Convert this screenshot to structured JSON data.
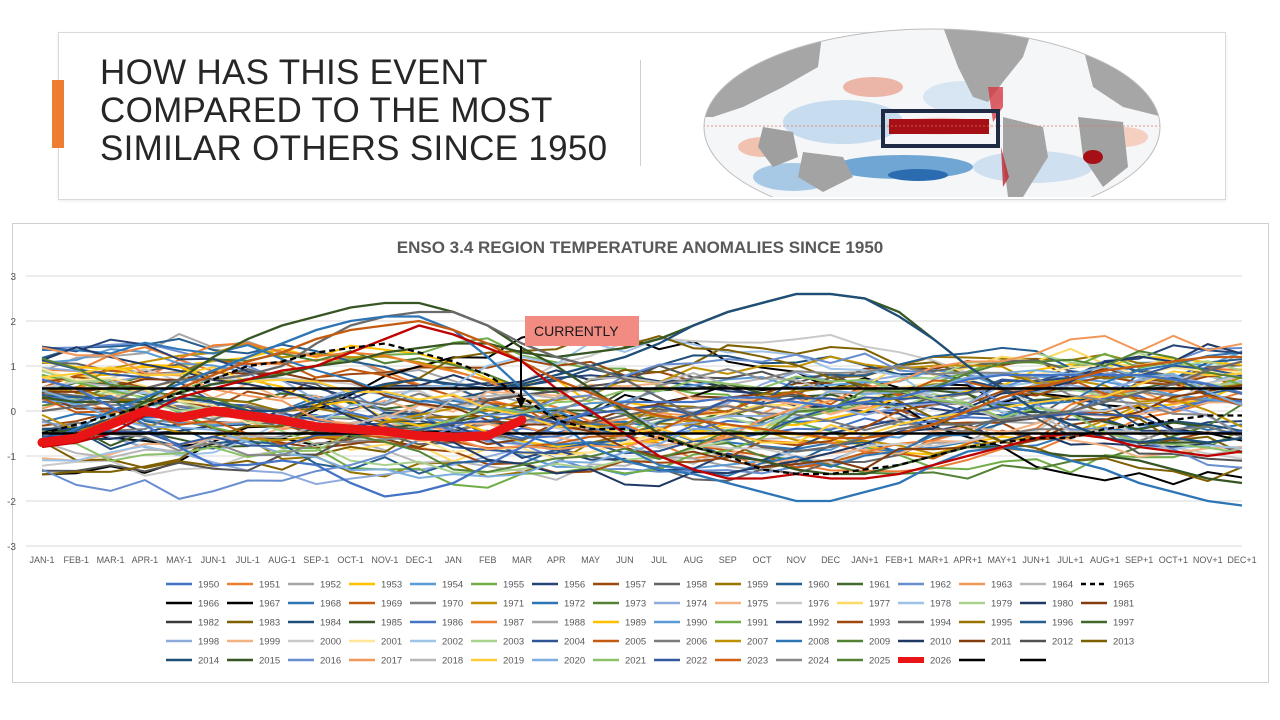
{
  "slide": {
    "headline_lines": [
      "HOW HAS THIS EVENT",
      "COMPARED TO THE MOST",
      "SIMILAR OTHERS SINCE 1950"
    ],
    "accent_color": "#ed7d31"
  },
  "map": {
    "icon": "world-sst-anomaly-map",
    "highlight_box_color": "#1f2a44",
    "warm_color": "#b2182b",
    "cool_color": "#2166ac"
  },
  "chart_data": {
    "type": "line",
    "title": "ENSO 3.4 REGION TEMPERATURE ANOMALIES SINCE 1950",
    "xlabel": "",
    "ylabel": "",
    "ylim": [
      -3,
      3
    ],
    "yticks": [
      "3",
      "2",
      "1",
      "0",
      "-1",
      "-2",
      "-3"
    ],
    "categories": [
      "JAN-1",
      "FEB-1",
      "MAR-1",
      "APR-1",
      "MAY-1",
      "JUN-1",
      "JUL-1",
      "AUG-1",
      "SEP-1",
      "OCT-1",
      "NOV-1",
      "DEC-1",
      "JAN",
      "FEB",
      "MAR",
      "APR",
      "MAY",
      "JUN",
      "JUL",
      "AUG",
      "SEP",
      "OCT",
      "NOV",
      "DEC",
      "JAN+1",
      "FEB+1",
      "MAR+1",
      "APR+1",
      "MAY+1",
      "JUN+1",
      "JUL+1",
      "AUG+1",
      "SEP+1",
      "OCT+1",
      "NOV+1",
      "DEC+1"
    ],
    "grid": true,
    "legend_position": "bottom",
    "annotation": {
      "text": "CURRENTLY",
      "category": "MAR",
      "color": "#f28b82"
    },
    "threshold_lines": [
      0.5,
      -0.5
    ],
    "highlight_series": {
      "name": "2026",
      "color": "#e81416",
      "values": [
        -0.7,
        -0.6,
        -0.3,
        0.0,
        -0.15,
        0.0,
        -0.1,
        -0.2,
        -0.35,
        -0.4,
        -0.45,
        -0.55,
        -0.58,
        -0.55,
        -0.2,
        null,
        null,
        null,
        null,
        null,
        null,
        null,
        null,
        null,
        null,
        null,
        null,
        null,
        null,
        null,
        null,
        null,
        null,
        null,
        null,
        null
      ]
    },
    "featured_series": [
      {
        "name": "1997",
        "color": "#375623",
        "values": [
          -0.5,
          -0.4,
          -0.2,
          0.2,
          0.7,
          1.2,
          1.6,
          1.9,
          2.1,
          2.3,
          2.4,
          2.4,
          2.2,
          1.9,
          1.4,
          1.0,
          0.5,
          0.0,
          -0.5,
          -0.8,
          -1.0,
          -1.1,
          -1.3,
          -1.4,
          -1.4,
          -1.2,
          -1.0,
          -0.8,
          -0.8,
          -0.9,
          -1.0,
          -1.0,
          -1.1,
          -1.3,
          -1.5,
          -1.6
        ]
      },
      {
        "name": "2015",
        "color": "#375623",
        "values": [
          0.3,
          0.2,
          0.2,
          0.2,
          0.4,
          0.6,
          0.7,
          0.8,
          1.0,
          1.1,
          1.3,
          1.4,
          1.5,
          1.5,
          1.3,
          1.2,
          1.3,
          1.4,
          1.6,
          1.9,
          2.2,
          2.4,
          2.6,
          2.6,
          2.5,
          2.2,
          1.6,
          1.0,
          0.5,
          0.0,
          -0.3,
          -0.6,
          -0.7,
          -0.7,
          -0.7,
          -0.6
        ]
      },
      {
        "name": "2014",
        "color": "#1f4e79",
        "values": [
          -0.4,
          -0.4,
          -0.2,
          0.1,
          0.3,
          0.2,
          0.0,
          0.0,
          0.2,
          0.4,
          0.6,
          0.7,
          0.6,
          0.5,
          0.6,
          0.8,
          1.0,
          1.2,
          1.5,
          1.9,
          2.2,
          2.4,
          2.6,
          2.6,
          2.5,
          2.1,
          1.6,
          1.0,
          0.5,
          0.0,
          -0.3,
          -0.6,
          -0.7,
          -0.6,
          -0.7,
          -0.6
        ]
      },
      {
        "name": "1982",
        "color": "#6a6a6a",
        "values": [
          0.0,
          0.1,
          0.2,
          0.5,
          0.7,
          0.7,
          0.8,
          1.0,
          1.5,
          1.9,
          2.1,
          2.2,
          2.2,
          1.9,
          1.5,
          1.2,
          1.0,
          0.7,
          0.3,
          -0.1,
          -0.5,
          -0.8,
          -0.9,
          -0.8,
          -0.6,
          -0.4,
          -0.3,
          -0.3,
          -0.2,
          -0.1,
          0.0,
          0.2,
          0.4,
          0.6,
          0.9,
          1.1
        ]
      },
      {
        "name": "1972",
        "color": "#2e75b6",
        "values": [
          -0.7,
          -0.4,
          0.0,
          0.3,
          0.6,
          0.9,
          1.2,
          1.5,
          1.8,
          2.0,
          2.1,
          2.1,
          1.8,
          1.2,
          0.5,
          -0.2,
          -0.8,
          -1.1,
          -1.3,
          -1.4,
          -1.6,
          -1.8,
          -2.0,
          -2.0,
          -1.8,
          -1.6,
          -1.2,
          -0.9,
          -0.8,
          -0.9,
          -1.1,
          -1.3,
          -1.6,
          -1.8,
          -2.0,
          -2.1
        ]
      },
      {
        "name": "1988",
        "color": "#4472c4",
        "values": [
          0.7,
          0.5,
          0.1,
          -0.3,
          -0.8,
          -1.2,
          -1.2,
          -1.1,
          -1.2,
          -1.6,
          -1.9,
          -1.8,
          -1.6,
          -1.2,
          -0.8,
          -0.3,
          0.0,
          0.2,
          0.2,
          0.2,
          0.3,
          0.3,
          0.2,
          0.1,
          0.2,
          0.3,
          0.5,
          0.7,
          0.8,
          0.8,
          0.8,
          0.8,
          0.8,
          0.7,
          0.6,
          0.4
        ]
      },
      {
        "name": "2023",
        "color": "#c55a11",
        "values": [
          -0.7,
          -0.5,
          -0.2,
          0.1,
          0.5,
          0.8,
          1.1,
          1.3,
          1.6,
          1.8,
          1.9,
          2.0,
          1.8,
          1.5,
          1.1,
          0.7,
          0.4,
          0.1,
          -0.1,
          -0.2,
          -0.3,
          -0.4,
          -0.5,
          -0.6,
          -0.6,
          -0.5,
          -0.3,
          0.0,
          0.3,
          0.5,
          0.7,
          0.9,
          1.0,
          1.1,
          1.2,
          1.2
        ]
      },
      {
        "name": "2009",
        "color": "#c00000",
        "values": [
          -0.8,
          -0.7,
          -0.5,
          -0.1,
          0.3,
          0.5,
          0.7,
          0.9,
          1.0,
          1.3,
          1.6,
          1.9,
          1.7,
          1.4,
          1.1,
          0.5,
          0.0,
          -0.5,
          -1.0,
          -1.3,
          -1.5,
          -1.5,
          -1.4,
          -1.5,
          -1.5,
          -1.4,
          -1.2,
          -1.0,
          -0.8,
          -0.6,
          -0.5,
          -0.6,
          -0.8,
          -0.9,
          -1.0,
          -0.9
        ]
      },
      {
        "name": "1965",
        "color": "#000000",
        "values": [
          -0.5,
          -0.3,
          -0.1,
          0.1,
          0.4,
          0.7,
          1.0,
          1.1,
          1.3,
          1.4,
          1.5,
          1.3,
          1.1,
          0.8,
          0.3,
          -0.2,
          -0.4,
          -0.4,
          -0.6,
          -0.8,
          -1.0,
          -1.3,
          -1.4,
          -1.4,
          -1.3,
          -1.2,
          -1.0,
          -0.8,
          -0.7,
          -0.6,
          -0.6,
          -0.4,
          -0.3,
          -0.2,
          -0.1,
          -0.1
        ]
      }
    ],
    "legend": [
      {
        "name": "1950",
        "color": "#4472c4"
      },
      {
        "name": "1951",
        "color": "#ed7d31"
      },
      {
        "name": "1952",
        "color": "#a5a5a5"
      },
      {
        "name": "1953",
        "color": "#ffc000"
      },
      {
        "name": "1954",
        "color": "#5b9bd5"
      },
      {
        "name": "1955",
        "color": "#70ad47"
      },
      {
        "name": "1956",
        "color": "#264478"
      },
      {
        "name": "1957",
        "color": "#9e480e"
      },
      {
        "name": "1958",
        "color": "#636363"
      },
      {
        "name": "1959",
        "color": "#997300"
      },
      {
        "name": "1960",
        "color": "#255e91"
      },
      {
        "name": "1961",
        "color": "#43682b"
      },
      {
        "name": "1962",
        "color": "#698ed0"
      },
      {
        "name": "1963",
        "color": "#f1975a"
      },
      {
        "name": "1964",
        "color": "#b7b7b7"
      },
      {
        "name": "1965",
        "color": "#000000",
        "dashed": true
      },
      {
        "name": "1966",
        "color": "#000000"
      },
      {
        "name": "1967",
        "color": "#000000"
      },
      {
        "name": "1968",
        "color": "#2e75b6"
      },
      {
        "name": "1969",
        "color": "#c55a11"
      },
      {
        "name": "1970",
        "color": "#7f7f7f"
      },
      {
        "name": "1971",
        "color": "#bf9000"
      },
      {
        "name": "1972",
        "color": "#2e75b6"
      },
      {
        "name": "1973",
        "color": "#548235"
      },
      {
        "name": "1974",
        "color": "#8faadc"
      },
      {
        "name": "1975",
        "color": "#f4b183"
      },
      {
        "name": "1976",
        "color": "#c9c9c9"
      },
      {
        "name": "1977",
        "color": "#ffd966"
      },
      {
        "name": "1978",
        "color": "#9dc3e6"
      },
      {
        "name": "1979",
        "color": "#a9d18e"
      },
      {
        "name": "1980",
        "color": "#1f3864"
      },
      {
        "name": "1981",
        "color": "#843c0c"
      },
      {
        "name": "1982",
        "color": "#3a3a3a"
      },
      {
        "name": "1983",
        "color": "#7f6000"
      },
      {
        "name": "1984",
        "color": "#1f4e79"
      },
      {
        "name": "1985",
        "color": "#375623"
      },
      {
        "name": "1986",
        "color": "#4472c4"
      },
      {
        "name": "1987",
        "color": "#ed7d31"
      },
      {
        "name": "1988",
        "color": "#a5a5a5"
      },
      {
        "name": "1989",
        "color": "#ffc000"
      },
      {
        "name": "1990",
        "color": "#5b9bd5"
      },
      {
        "name": "1991",
        "color": "#70ad47"
      },
      {
        "name": "1992",
        "color": "#264478"
      },
      {
        "name": "1993",
        "color": "#9e480e"
      },
      {
        "name": "1994",
        "color": "#636363"
      },
      {
        "name": "1995",
        "color": "#997300"
      },
      {
        "name": "1996",
        "color": "#255e91"
      },
      {
        "name": "1997",
        "color": "#43682b"
      },
      {
        "name": "1998",
        "color": "#8eaadb"
      },
      {
        "name": "1999",
        "color": "#f4b183"
      },
      {
        "name": "2000",
        "color": "#c9c9c9"
      },
      {
        "name": "2001",
        "color": "#ffe699"
      },
      {
        "name": "2002",
        "color": "#9dc3e6"
      },
      {
        "name": "2003",
        "color": "#a9d18e"
      },
      {
        "name": "2004",
        "color": "#2f5597"
      },
      {
        "name": "2005",
        "color": "#c55a11"
      },
      {
        "name": "2006",
        "color": "#7b7b7b"
      },
      {
        "name": "2007",
        "color": "#bf9000"
      },
      {
        "name": "2008",
        "color": "#2e75b6"
      },
      {
        "name": "2009",
        "color": "#548235"
      },
      {
        "name": "2010",
        "color": "#203864"
      },
      {
        "name": "2011",
        "color": "#843c0c"
      },
      {
        "name": "2012",
        "color": "#525252"
      },
      {
        "name": "2013",
        "color": "#7f6000"
      },
      {
        "name": "2014",
        "color": "#1f4e79"
      },
      {
        "name": "2015",
        "color": "#375623"
      },
      {
        "name": "2016",
        "color": "#698ed0"
      },
      {
        "name": "2017",
        "color": "#f1975a"
      },
      {
        "name": "2018",
        "color": "#b7b7b7"
      },
      {
        "name": "2019",
        "color": "#ffcd33"
      },
      {
        "name": "2020",
        "color": "#7cafdd"
      },
      {
        "name": "2021",
        "color": "#8cc168"
      },
      {
        "name": "2022",
        "color": "#335aa1"
      },
      {
        "name": "2023",
        "color": "#d26012"
      },
      {
        "name": "2024",
        "color": "#878787"
      },
      {
        "name": "2025",
        "color": "#548235"
      },
      {
        "name": "2026",
        "color": "#e81416",
        "thick": true
      },
      {
        "name": "",
        "color": "#000000"
      },
      {
        "name": "",
        "color": "#000000"
      }
    ]
  }
}
